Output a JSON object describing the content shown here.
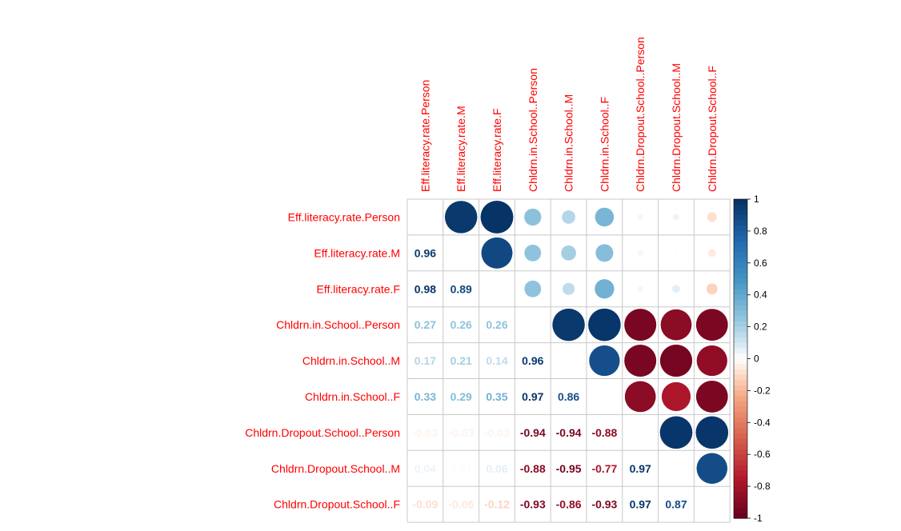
{
  "chart_data": {
    "type": "heatmap",
    "title": "",
    "variables": [
      "Eff.literacy.rate.Person",
      "Eff.literacy.rate.M",
      "Eff.literacy.rate.F",
      "Chldrn.in.School..Person",
      "Chldrn.in.School..M",
      "Chldrn.in.School..F",
      "Chldrn.Dropout.School..Person",
      "Chldrn.Dropout.School..M",
      "Chldrn.Dropout.School..F"
    ],
    "matrix": [
      [
        1,
        0.96,
        0.98,
        0.27,
        0.17,
        0.33,
        -0.03,
        0.04,
        -0.09
      ],
      [
        0.96,
        1,
        0.89,
        0.26,
        0.21,
        0.29,
        -0.03,
        0.01,
        -0.06
      ],
      [
        0.98,
        0.89,
        1,
        0.26,
        0.14,
        0.35,
        -0.03,
        0.06,
        -0.12
      ],
      [
        0.27,
        0.26,
        0.26,
        1,
        0.96,
        0.97,
        -0.94,
        -0.88,
        -0.93
      ],
      [
        0.17,
        0.21,
        0.14,
        0.96,
        1,
        0.86,
        -0.94,
        -0.95,
        -0.86
      ],
      [
        0.33,
        0.29,
        0.35,
        0.97,
        0.86,
        1,
        -0.88,
        -0.77,
        -0.93
      ],
      [
        -0.03,
        -0.03,
        -0.03,
        -0.94,
        -0.94,
        -0.88,
        1,
        0.97,
        0.97
      ],
      [
        0.04,
        0.01,
        0.06,
        -0.88,
        -0.95,
        -0.77,
        0.97,
        1,
        0.87
      ],
      [
        -0.09,
        -0.06,
        -0.12,
        -0.93,
        -0.86,
        -0.93,
        0.97,
        0.87,
        1
      ]
    ],
    "upper": "circle",
    "lower": "number",
    "diagonal": "blank",
    "color_scale": {
      "min": -1,
      "max": 1,
      "ticks": [
        1,
        0.8,
        0.6,
        0.4,
        0.2,
        0,
        -0.2,
        -0.4,
        -0.6,
        -0.8,
        -1
      ],
      "low_color": "#67001f",
      "mid_color": "#ffffff",
      "high_color": "#053061"
    },
    "label_color": "#ff0000",
    "grid": true
  }
}
